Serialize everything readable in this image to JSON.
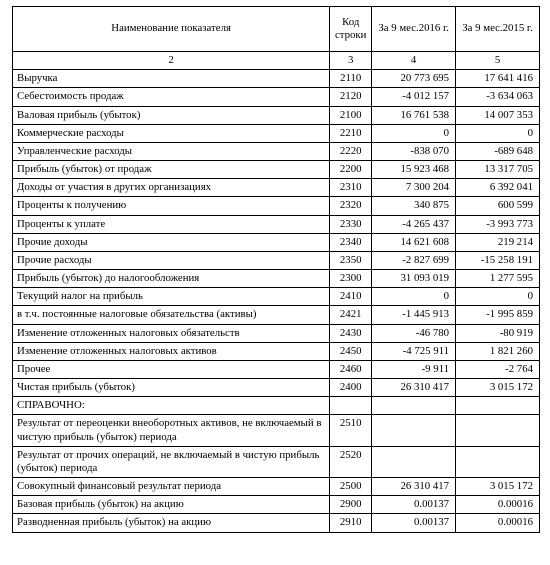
{
  "header": {
    "name": "Наименование показателя",
    "code": "Код строки",
    "period1": "За  9 мес.2016 г.",
    "period2": "За  9 мес.2015 г."
  },
  "subheader": {
    "c1": "2",
    "c2": "3",
    "c3": "4",
    "c4": "5"
  },
  "rows": [
    {
      "name": "Выручка",
      "code": "2110",
      "v1": "20 773 695",
      "v2": "17 641 416"
    },
    {
      "name": "Себестоимость продаж",
      "code": "2120",
      "v1": "-4 012 157",
      "v2": "-3 634 063"
    },
    {
      "name": "Валовая прибыль (убыток)",
      "code": "2100",
      "v1": "16 761 538",
      "v2": "14 007 353"
    },
    {
      "name": "Коммерческие расходы",
      "code": "2210",
      "v1": "0",
      "v2": "0"
    },
    {
      "name": "Управленческие расходы",
      "code": "2220",
      "v1": "-838 070",
      "v2": "-689 648"
    },
    {
      "name": "Прибыль (убыток) от продаж",
      "code": "2200",
      "v1": "15 923 468",
      "v2": "13 317 705"
    },
    {
      "name": "Доходы от участия в других организациях",
      "code": "2310",
      "v1": "7 300 204",
      "v2": "6 392 041"
    },
    {
      "name": "Проценты к получению",
      "code": "2320",
      "v1": "340 875",
      "v2": "600 599"
    },
    {
      "name": "Проценты к уплате",
      "code": "2330",
      "v1": "-4 265 437",
      "v2": "-3 993 773"
    },
    {
      "name": "Прочие доходы",
      "code": "2340",
      "v1": "14 621 608",
      "v2": "219 214"
    },
    {
      "name": "Прочие расходы",
      "code": "2350",
      "v1": "-2 827 699",
      "v2": "-15 258 191"
    },
    {
      "name": "Прибыль (убыток) до налогообложения",
      "code": "2300",
      "v1": "31 093 019",
      "v2": "1 277 595"
    },
    {
      "name": "Текущий налог на прибыль",
      "code": "2410",
      "v1": "0",
      "v2": "0"
    },
    {
      "name": "в т.ч. постоянные налоговые обязательства (активы)",
      "code": "2421",
      "v1": "-1 445 913",
      "v2": "-1 995 859"
    },
    {
      "name": "Изменение отложенных налоговых обязательств",
      "code": "2430",
      "v1": "-46 780",
      "v2": "-80 919"
    },
    {
      "name": "Изменение отложенных налоговых активов",
      "code": "2450",
      "v1": "-4 725 911",
      "v2": "1 821 260"
    },
    {
      "name": "Прочее",
      "code": "2460",
      "v1": "-9 911",
      "v2": "-2 764"
    },
    {
      "name": "Чистая прибыль (убыток)",
      "code": "2400",
      "v1": "26 310 417",
      "v2": "3 015 172"
    },
    {
      "name": "СПРАВОЧНО:",
      "code": "",
      "v1": "",
      "v2": ""
    },
    {
      "name": "Результат от переоценки внеоборотных активов, не включаемый в чистую прибыль (убыток) периода",
      "code": "2510",
      "v1": "",
      "v2": "",
      "tall": true
    },
    {
      "name": "Результат от прочих операций, не включаемый в чистую прибыль (убыток) периода",
      "code": "2520",
      "v1": "",
      "v2": "",
      "tall": true
    },
    {
      "name": "Совокупный финансовый результат периода",
      "code": "2500",
      "v1": "26 310 417",
      "v2": "3 015 172"
    },
    {
      "name": "Базовая прибыль (убыток) на акцию",
      "code": "2900",
      "v1": "0.00137",
      "v2": "0.00016"
    },
    {
      "name": "Разводненная прибыль (убыток) на акцию",
      "code": "2910",
      "v1": "0.00137",
      "v2": "0.00016"
    }
  ]
}
